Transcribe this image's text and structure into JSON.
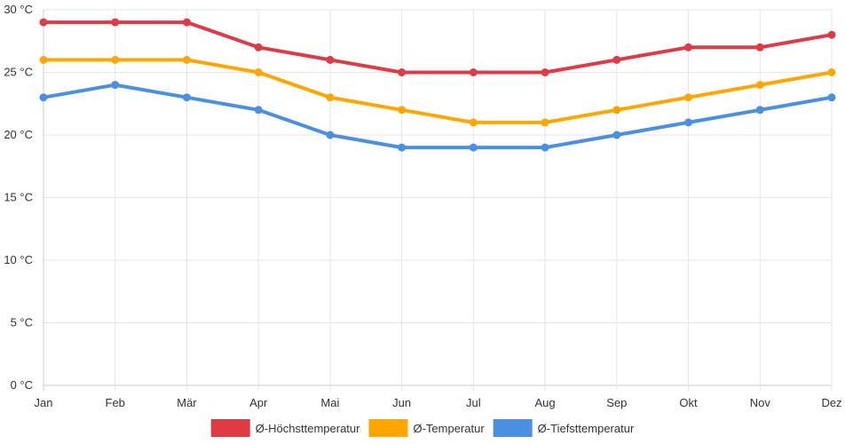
{
  "chart_data": {
    "type": "line",
    "title": "",
    "xlabel": "",
    "ylabel": "",
    "categories": [
      "Jan",
      "Feb",
      "Mär",
      "Apr",
      "Mai",
      "Jun",
      "Jul",
      "Aug",
      "Sep",
      "Okt",
      "Nov",
      "Dez"
    ],
    "ylim": [
      0,
      30
    ],
    "y_ticks": [
      0,
      5,
      10,
      15,
      20,
      25,
      30
    ],
    "y_tick_labels": [
      "0 °C",
      "5 °C",
      "10 °C",
      "15 °C",
      "20 °C",
      "25 °C",
      "30 °C"
    ],
    "grid": true,
    "legend_position": "bottom-center",
    "series": [
      {
        "name": "Ø-Höchsttemperatur",
        "color": "#e03a45",
        "values": [
          29,
          29,
          29,
          27,
          26,
          25,
          25,
          25,
          26,
          27,
          27,
          28
        ]
      },
      {
        "name": "Ø-Temperatur",
        "color": "#ffa600",
        "values": [
          26,
          26,
          26,
          25,
          23,
          22,
          21,
          21,
          22,
          23,
          24,
          25
        ]
      },
      {
        "name": "Ø-Tiefsttemperatur",
        "color": "#4a90e2",
        "values": [
          23,
          24,
          23,
          22,
          20,
          19,
          19,
          19,
          20,
          21,
          22,
          23
        ]
      }
    ]
  }
}
